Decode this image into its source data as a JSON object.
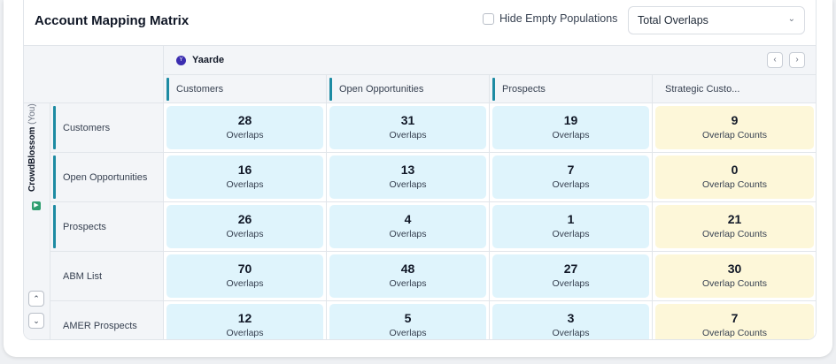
{
  "header": {
    "title": "Account Mapping Matrix",
    "hide_empty_label": "Hide Empty Populations",
    "hide_empty_checked": false,
    "select_value": "Total Overlaps"
  },
  "partner": {
    "name": "Yaarde",
    "logo_letter": "Y"
  },
  "own": {
    "name": "CrowdBlossom",
    "suffix": "(You)"
  },
  "columns": [
    {
      "label": "Customers",
      "accent": true
    },
    {
      "label": "Open Opportunities",
      "accent": true
    },
    {
      "label": "Prospects",
      "accent": true
    },
    {
      "label": "Strategic Custo...",
      "accent": false
    }
  ],
  "rows": [
    {
      "label": "Customers",
      "accent": true,
      "cells": [
        {
          "value": "28",
          "label": "Overlaps"
        },
        {
          "value": "31",
          "label": "Overlaps"
        },
        {
          "value": "19",
          "label": "Overlaps"
        },
        {
          "value": "9",
          "label": "Overlap Counts"
        }
      ]
    },
    {
      "label": "Open Opportunities",
      "accent": true,
      "cells": [
        {
          "value": "16",
          "label": "Overlaps"
        },
        {
          "value": "13",
          "label": "Overlaps"
        },
        {
          "value": "7",
          "label": "Overlaps"
        },
        {
          "value": "0",
          "label": "Overlap Counts"
        }
      ]
    },
    {
      "label": "Prospects",
      "accent": true,
      "cells": [
        {
          "value": "26",
          "label": "Overlaps"
        },
        {
          "value": "4",
          "label": "Overlaps"
        },
        {
          "value": "1",
          "label": "Overlaps"
        },
        {
          "value": "21",
          "label": "Overlap Counts"
        }
      ]
    },
    {
      "label": "ABM List",
      "accent": false,
      "cells": [
        {
          "value": "70",
          "label": "Overlaps"
        },
        {
          "value": "48",
          "label": "Overlaps"
        },
        {
          "value": "27",
          "label": "Overlaps"
        },
        {
          "value": "30",
          "label": "Overlap Counts"
        }
      ]
    },
    {
      "label": "AMER Prospects",
      "accent": false,
      "cells": [
        {
          "value": "12",
          "label": "Overlaps"
        },
        {
          "value": "5",
          "label": "Overlaps"
        },
        {
          "value": "3",
          "label": "Overlaps"
        },
        {
          "value": "7",
          "label": "Overlap Counts"
        }
      ]
    }
  ],
  "icons": {
    "prev": "‹",
    "next": "›",
    "up": "⌃",
    "down": "⌄",
    "dropdown": "⌄"
  },
  "colors": {
    "accent": "#1d8ba3",
    "cell_blue": "#dff4fc",
    "cell_yellow": "#fdf7d9",
    "partner_logo": "#3b2db0",
    "own_icon": "#2f9e6f"
  }
}
